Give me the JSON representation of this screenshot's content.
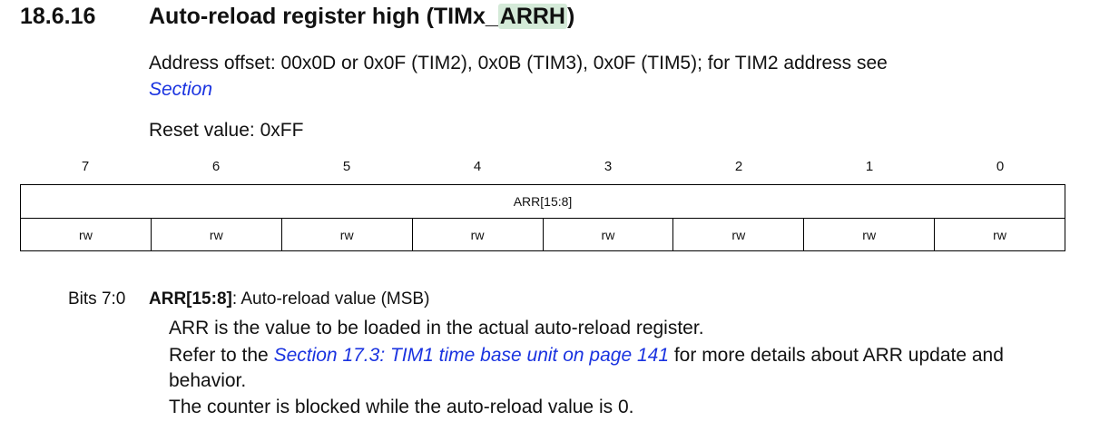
{
  "header": {
    "section_number": "18.6.16",
    "title_prefix": "Auto-reload register high (TIMx_",
    "title_highlight": "ARRH",
    "title_suffix": ")"
  },
  "address": {
    "text": "Address offset: 00x0D or 0x0F (TIM2), 0x0B (TIM3), 0x0F (TIM5); for TIM2 address see",
    "link_text": "Section"
  },
  "reset": {
    "text": "Reset value: 0xFF"
  },
  "register": {
    "bit_numbers": [
      "7",
      "6",
      "5",
      "4",
      "3",
      "2",
      "1",
      "0"
    ],
    "field_name": "ARR[15:8]",
    "access": [
      "rw",
      "rw",
      "rw",
      "rw",
      "rw",
      "rw",
      "rw",
      "rw"
    ]
  },
  "bits": {
    "range_label": "Bits 7:0",
    "field_name": "ARR[15:8]",
    "field_desc": ": Auto-reload value (MSB)",
    "line1": "ARR is the value to be loaded in the actual auto-reload register.",
    "line2_prefix": "Refer to the ",
    "line2_link": "Section 17.3: TIM1 time base unit on page 141",
    "line2_suffix": " for more details about ARR update and",
    "line3": "behavior.",
    "line4": "The counter is blocked while the auto-reload value is 0."
  }
}
